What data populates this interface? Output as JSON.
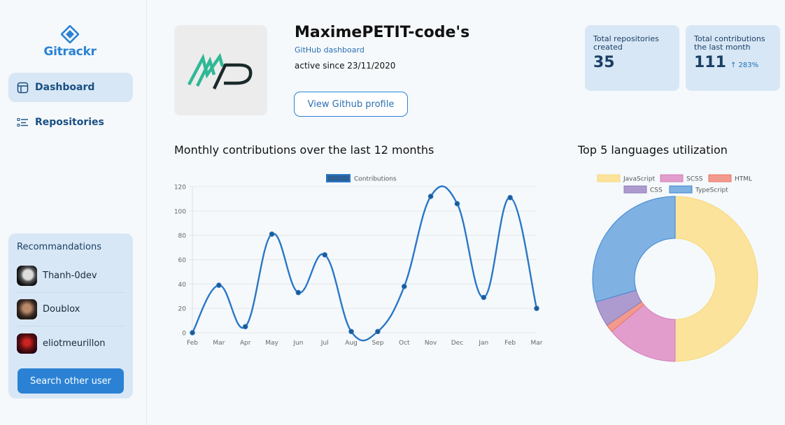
{
  "app": {
    "name": "Gitrackr"
  },
  "nav": {
    "dashboard": "Dashboard",
    "repositories": "Repositories"
  },
  "recommendations": {
    "title": "Recommandations",
    "users": [
      "Thanh-0dev",
      "Doublox",
      "eliotmeurillon"
    ],
    "search_button": "Search other user"
  },
  "profile": {
    "username": "MaximePETIT-code's",
    "subtitle": "GitHub dashboard",
    "since": "active since 23/11/2020",
    "button": "View Github profile"
  },
  "stats": {
    "repos_label": "Total repositories created",
    "repos_value": "35",
    "contrib_label": "Total contributions the last month",
    "contrib_value": "111",
    "contrib_delta": "283%"
  },
  "titles": {
    "line": "Monthly contributions over the last 12 months",
    "pie": "Top 5 languages utilization"
  },
  "colors": {
    "accent": "#2b82d4",
    "panel": "#d8e7f5"
  },
  "chart_data": [
    {
      "type": "line",
      "title": "Monthly contributions over the last 12 months",
      "categories": [
        "Feb",
        "Mar",
        "Apr",
        "May",
        "Jun",
        "Jul",
        "Aug",
        "Sep",
        "Oct",
        "Nov",
        "Dec",
        "Jan",
        "Feb",
        "Mar"
      ],
      "series": [
        {
          "name": "Contributions",
          "values": [
            0,
            39,
            5,
            81,
            33,
            64,
            1,
            1,
            38,
            112,
            106,
            29,
            111,
            20
          ],
          "color": "#2b77c6"
        }
      ],
      "ylim": [
        0,
        120
      ],
      "yticks": [
        0,
        20,
        40,
        60,
        80,
        100,
        120
      ],
      "legend": "top",
      "grid": true
    },
    {
      "type": "pie",
      "title": "Top 5 languages utilization",
      "labels": [
        "JavaScript",
        "SCSS",
        "HTML",
        "CSS",
        "TypeScript"
      ],
      "values": [
        50,
        14,
        1.5,
        5,
        29.5
      ],
      "colors": [
        "#fce39b",
        "#e39dcd",
        "#f29a8e",
        "#ad9bcf",
        "#7fb1e3"
      ],
      "borders": [
        "#f5d97b",
        "#d27cb8",
        "#e7776b",
        "#8e7bb8",
        "#3e86d0"
      ],
      "donut": true,
      "legend": "top"
    }
  ]
}
